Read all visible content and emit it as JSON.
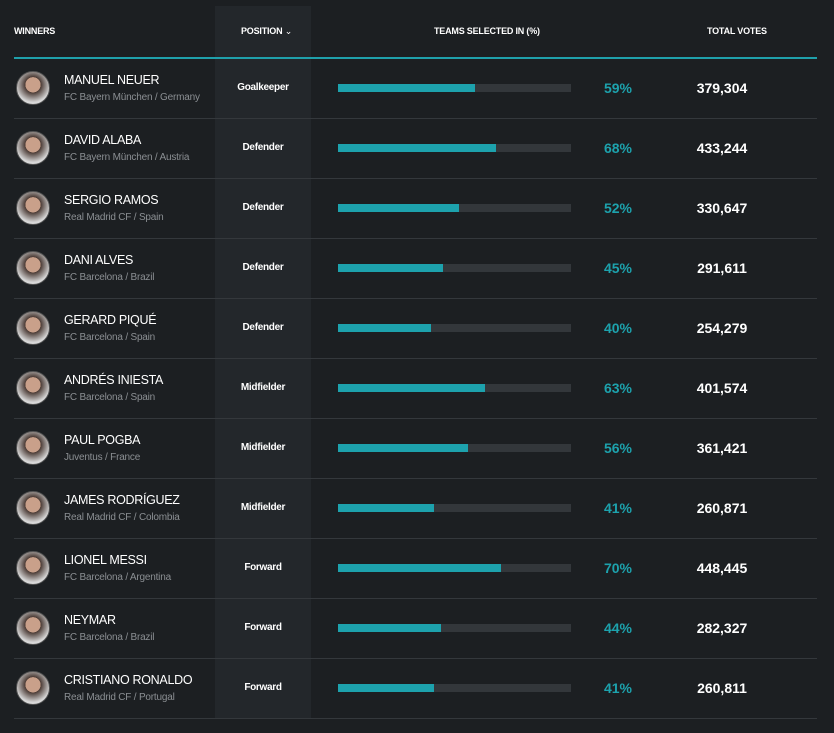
{
  "header": {
    "winners": "WINNERS",
    "position": "POSITION",
    "position_sort_icon": "chevron-down-icon",
    "teams_selected": "TEAMS SELECTED IN (%)",
    "total_votes": "TOTAL VOTES"
  },
  "colors": {
    "accent": "#1da2ad",
    "background": "#1c1f22"
  },
  "players": [
    {
      "name": "MANUEL NEUER",
      "club": "FC Bayern München / Germany",
      "position": "Goalkeeper",
      "pct": 59,
      "pct_label": "59%",
      "votes": "379,304"
    },
    {
      "name": "DAVID ALABA",
      "club": "FC Bayern München / Austria",
      "position": "Defender",
      "pct": 68,
      "pct_label": "68%",
      "votes": "433,244"
    },
    {
      "name": "SERGIO RAMOS",
      "club": "Real Madrid CF / Spain",
      "position": "Defender",
      "pct": 52,
      "pct_label": "52%",
      "votes": "330,647"
    },
    {
      "name": "DANI ALVES",
      "club": "FC Barcelona / Brazil",
      "position": "Defender",
      "pct": 45,
      "pct_label": "45%",
      "votes": "291,611"
    },
    {
      "name": "GERARD PIQUÉ",
      "club": "FC Barcelona / Spain",
      "position": "Defender",
      "pct": 40,
      "pct_label": "40%",
      "votes": "254,279"
    },
    {
      "name": "ANDRÉS INIESTA",
      "club": "FC Barcelona / Spain",
      "position": "Midfielder",
      "pct": 63,
      "pct_label": "63%",
      "votes": "401,574"
    },
    {
      "name": "PAUL POGBA",
      "club": "Juventus / France",
      "position": "Midfielder",
      "pct": 56,
      "pct_label": "56%",
      "votes": "361,421"
    },
    {
      "name": "JAMES RODRÍGUEZ",
      "club": "Real Madrid CF / Colombia",
      "position": "Midfielder",
      "pct": 41,
      "pct_label": "41%",
      "votes": "260,871"
    },
    {
      "name": "LIONEL MESSI",
      "club": "FC Barcelona / Argentina",
      "position": "Forward",
      "pct": 70,
      "pct_label": "70%",
      "votes": "448,445"
    },
    {
      "name": "NEYMAR",
      "club": "FC Barcelona / Brazil",
      "position": "Forward",
      "pct": 44,
      "pct_label": "44%",
      "votes": "282,327"
    },
    {
      "name": "CRISTIANO RONALDO",
      "club": "Real Madrid CF / Portugal",
      "position": "Forward",
      "pct": 41,
      "pct_label": "41%",
      "votes": "260,811"
    }
  ]
}
